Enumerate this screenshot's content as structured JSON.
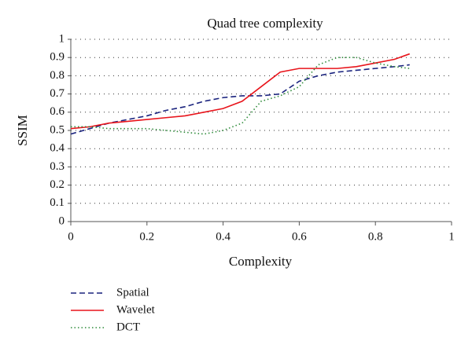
{
  "chart_data": {
    "type": "line",
    "title": "Quad tree complexity",
    "x_label": "Complexity",
    "y_label": "SSIM",
    "x": [
      0,
      0.05,
      0.1,
      0.15,
      0.2,
      0.25,
      0.3,
      0.35,
      0.4,
      0.45,
      0.5,
      0.55,
      0.6,
      0.65,
      0.7,
      0.75,
      0.8,
      0.85,
      0.89
    ],
    "series": [
      {
        "name": "Spatial",
        "color": "#1a237e",
        "style": "dashed",
        "values": [
          0.48,
          0.51,
          0.54,
          0.56,
          0.58,
          0.61,
          0.63,
          0.66,
          0.68,
          0.69,
          0.69,
          0.7,
          0.77,
          0.8,
          0.82,
          0.83,
          0.84,
          0.85,
          0.86
        ]
      },
      {
        "name": "Wavelet",
        "color": "#e8141b",
        "style": "solid",
        "values": [
          0.51,
          0.52,
          0.54,
          0.55,
          0.56,
          0.57,
          0.58,
          0.6,
          0.62,
          0.66,
          0.74,
          0.82,
          0.84,
          0.84,
          0.84,
          0.85,
          0.87,
          0.89,
          0.92
        ]
      },
      {
        "name": "DCT",
        "color": "#2e8b3a",
        "style": "dotted",
        "values": [
          0.52,
          0.52,
          0.51,
          0.51,
          0.51,
          0.5,
          0.49,
          0.48,
          0.5,
          0.54,
          0.66,
          0.69,
          0.74,
          0.86,
          0.9,
          0.9,
          0.87,
          0.85,
          0.84
        ]
      }
    ],
    "xlim": [
      0,
      1
    ],
    "xticks": [
      0,
      0.2,
      0.4,
      0.6,
      0.8,
      1
    ],
    "ylim": [
      0,
      1
    ],
    "yticks": [
      0,
      0.1,
      0.2,
      0.3,
      0.4,
      0.5,
      0.6,
      0.7,
      0.8,
      0.9,
      1
    ],
    "grid": true,
    "legend": "bottom-left"
  }
}
